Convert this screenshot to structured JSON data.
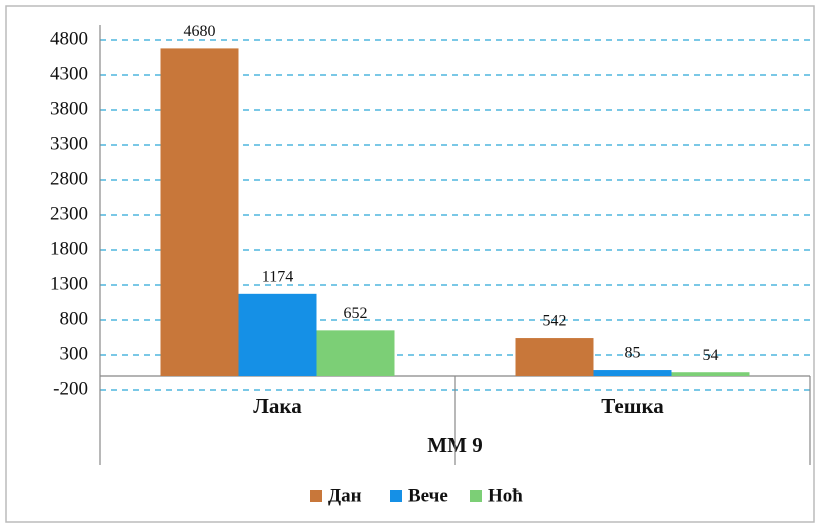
{
  "chart_data": {
    "type": "bar",
    "x_label": "MM 9",
    "categories": [
      "Лака",
      "Тешка"
    ],
    "series": [
      {
        "name": "Дан",
        "color": "#c8773a",
        "values": [
          4680,
          542
        ]
      },
      {
        "name": "Вече",
        "color": "#1590e6",
        "values": [
          1174,
          85
        ]
      },
      {
        "name": "Ноћ",
        "color": "#7ccf76",
        "values": [
          652,
          54
        ]
      }
    ],
    "ylim": [
      -200,
      4800
    ],
    "yticks": [
      -200,
      300,
      800,
      1300,
      1800,
      2300,
      2800,
      3300,
      3800,
      4300,
      4800
    ],
    "grid": true,
    "legend": "bottom"
  }
}
